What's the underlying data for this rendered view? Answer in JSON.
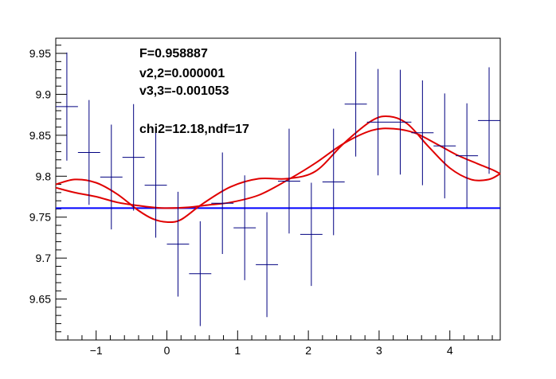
{
  "chart_data": {
    "type": "scatter",
    "title": "",
    "xlabel": "",
    "ylabel": "",
    "xlim": [
      -1.5708,
      4.7124
    ],
    "ylim": [
      9.6,
      9.9685
    ],
    "grid": false,
    "x_ticks": [
      {
        "value": -1,
        "label": "−1"
      },
      {
        "value": 0,
        "label": "0"
      },
      {
        "value": 1,
        "label": "1"
      },
      {
        "value": 2,
        "label": "2"
      },
      {
        "value": 3,
        "label": "3"
      },
      {
        "value": 4,
        "label": "4"
      }
    ],
    "y_ticks": [
      {
        "value": 9.65,
        "label": "9.65"
      },
      {
        "value": 9.7,
        "label": "9.7"
      },
      {
        "value": 9.75,
        "label": "9.75"
      },
      {
        "value": 9.8,
        "label": "9.8"
      },
      {
        "value": 9.85,
        "label": "9.85"
      },
      {
        "value": 9.9,
        "label": "9.9"
      },
      {
        "value": 9.95,
        "label": "9.95"
      }
    ],
    "bin_half_width": 0.1571,
    "points": [
      {
        "x": -1.414,
        "y": 9.885,
        "err": 0.066
      },
      {
        "x": -1.1,
        "y": 9.829,
        "err": 0.064
      },
      {
        "x": -0.785,
        "y": 9.799,
        "err": 0.064
      },
      {
        "x": -0.471,
        "y": 9.823,
        "err": 0.065
      },
      {
        "x": -0.157,
        "y": 9.789,
        "err": 0.064
      },
      {
        "x": 0.157,
        "y": 9.717,
        "err": 0.064
      },
      {
        "x": 0.471,
        "y": 9.681,
        "err": 0.064
      },
      {
        "x": 0.785,
        "y": 9.767,
        "err": 0.062
      },
      {
        "x": 1.1,
        "y": 9.737,
        "err": 0.064
      },
      {
        "x": 1.414,
        "y": 9.692,
        "err": 0.064
      },
      {
        "x": 1.728,
        "y": 9.794,
        "err": 0.064
      },
      {
        "x": 2.042,
        "y": 9.729,
        "err": 0.063
      },
      {
        "x": 2.356,
        "y": 9.793,
        "err": 0.065
      },
      {
        "x": 2.67,
        "y": 9.888,
        "err": 0.064
      },
      {
        "x": 2.985,
        "y": 9.866,
        "err": 0.065
      },
      {
        "x": 3.299,
        "y": 9.866,
        "err": 0.064
      },
      {
        "x": 3.613,
        "y": 9.853,
        "err": 0.064
      },
      {
        "x": 3.927,
        "y": 9.837,
        "err": 0.064
      },
      {
        "x": 4.241,
        "y": 9.825,
        "err": 0.064
      },
      {
        "x": 4.555,
        "y": 9.868,
        "err": 0.065
      }
    ],
    "baseline": {
      "y": 9.761,
      "color": "#0000ff"
    },
    "fit_curves": [
      {
        "color": "#e00000",
        "x": [
          -1.5708,
          -1.3,
          -1.0,
          -0.7,
          -0.4,
          -0.2,
          0.0,
          0.2,
          0.5,
          0.9,
          1.3,
          1.7,
          2.1,
          2.5,
          2.9,
          3.15,
          3.4,
          3.7,
          4.0,
          4.3,
          4.55,
          4.7124
        ],
        "y": [
          9.79,
          9.796,
          9.792,
          9.778,
          9.758,
          9.748,
          9.744,
          9.747,
          9.766,
          9.787,
          9.797,
          9.797,
          9.806,
          9.84,
          9.868,
          9.873,
          9.864,
          9.836,
          9.81,
          9.796,
          9.796,
          9.803
        ]
      },
      {
        "color": "#e00000",
        "x": [
          -1.5708,
          -1.3,
          -1.0,
          -0.7,
          -0.4,
          -0.2,
          0.0,
          0.3,
          0.6,
          0.9,
          1.3,
          1.7,
          2.1,
          2.5,
          2.9,
          3.2,
          3.5,
          3.8,
          4.1,
          4.4,
          4.6,
          4.7124
        ],
        "y": [
          9.786,
          9.78,
          9.775,
          9.768,
          9.764,
          9.762,
          9.761,
          9.762,
          9.765,
          9.768,
          9.777,
          9.795,
          9.816,
          9.84,
          9.856,
          9.858,
          9.853,
          9.84,
          9.826,
          9.815,
          9.808,
          9.803
        ]
      }
    ],
    "annotations": [
      {
        "id": "F",
        "text": "F=0.958887"
      },
      {
        "id": "v22",
        "text": "v2,2=0.000001"
      },
      {
        "id": "v33",
        "text": "v3,3=-0.001053"
      },
      {
        "id": "chi2",
        "text": "chi2=12.18,ndf=17"
      }
    ],
    "marker_color": "#000080"
  }
}
